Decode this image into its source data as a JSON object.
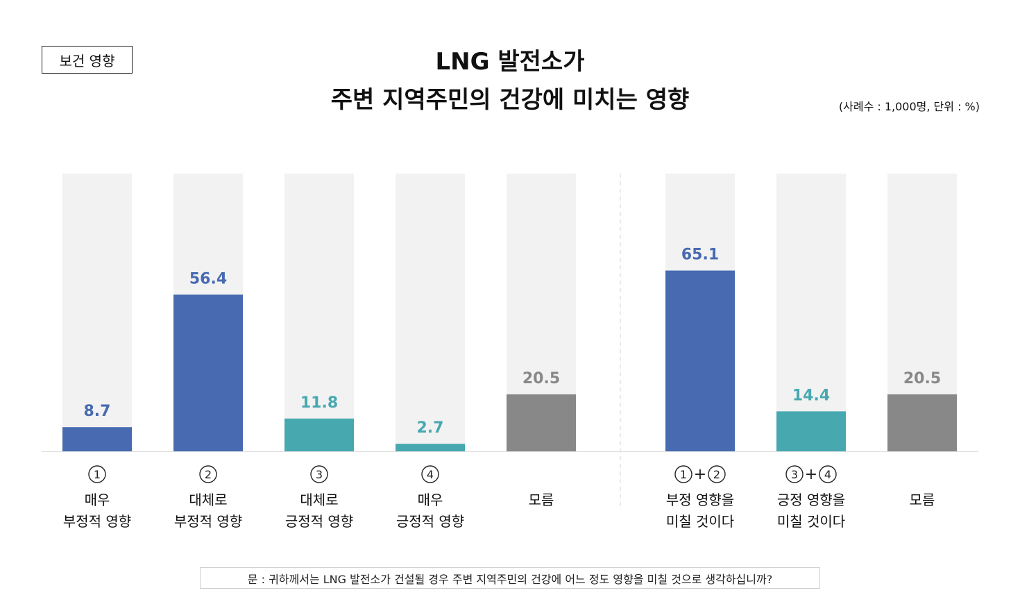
{
  "tag": "보건 영향",
  "title_line1": "LNG 발전소가",
  "title_line2": "주변 지역주민의 건강에 미치는 영향",
  "note": "(사례수 : 1,000명, 단위 : %)",
  "question": "문 : 귀하께서는 LNG 발전소가 건설될 경우 주변 지역주민의 건강에 어느 정도 영향을 미칠 것으로 생각하십니까?",
  "colors": {
    "negative": "#476AB0",
    "positive": "#47A8B0",
    "unknown": "#888888",
    "track": "#F2F2F2"
  },
  "chart_data": [
    {
      "type": "bar",
      "ylim": [
        0,
        100
      ],
      "categories": [
        {
          "marker": "①",
          "lines": [
            "매우",
            "부정적 영향"
          ]
        },
        {
          "marker": "②",
          "lines": [
            "대체로",
            "부정적 영향"
          ]
        },
        {
          "marker": "③",
          "lines": [
            "대체로",
            "긍정적 영향"
          ]
        },
        {
          "marker": "④",
          "lines": [
            "매우",
            "긍정적 영향"
          ]
        },
        {
          "marker": "",
          "lines": [
            "모름"
          ]
        }
      ],
      "values": [
        8.7,
        56.4,
        11.8,
        2.7,
        20.5
      ],
      "value_labels": [
        "8.7",
        "56.4",
        "11.8",
        "2.7",
        "20.5"
      ],
      "bar_colors": [
        "negative",
        "negative",
        "positive",
        "positive",
        "unknown"
      ]
    },
    {
      "type": "bar",
      "ylim": [
        0,
        100
      ],
      "categories": [
        {
          "marker": "①+②",
          "lines": [
            "부정 영향을",
            "미칠 것이다"
          ]
        },
        {
          "marker": "③+④",
          "lines": [
            "긍정 영향을",
            "미칠 것이다"
          ]
        },
        {
          "marker": "",
          "lines": [
            "모름"
          ]
        }
      ],
      "values": [
        65.1,
        14.4,
        20.5
      ],
      "value_labels": [
        "65.1",
        "14.4",
        "20.5"
      ],
      "bar_colors": [
        "negative",
        "positive",
        "unknown"
      ]
    }
  ]
}
